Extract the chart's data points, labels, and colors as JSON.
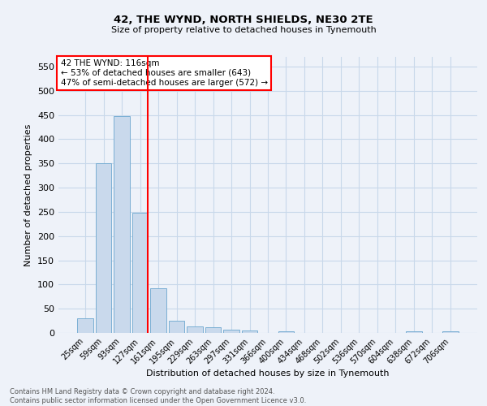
{
  "title1": "42, THE WYND, NORTH SHIELDS, NE30 2TE",
  "title2": "Size of property relative to detached houses in Tynemouth",
  "xlabel": "Distribution of detached houses by size in Tynemouth",
  "ylabel": "Number of detached properties",
  "annotation_line1": "42 THE WYND: 116sqm",
  "annotation_line2": "← 53% of detached houses are smaller (643)",
  "annotation_line3": "47% of semi-detached houses are larger (572) →",
  "footer_line1": "Contains HM Land Registry data © Crown copyright and database right 2024.",
  "footer_line2": "Contains public sector information licensed under the Open Government Licence v3.0.",
  "bar_categories": [
    "25sqm",
    "59sqm",
    "93sqm",
    "127sqm",
    "161sqm",
    "195sqm",
    "229sqm",
    "263sqm",
    "297sqm",
    "331sqm",
    "366sqm",
    "400sqm",
    "434sqm",
    "468sqm",
    "502sqm",
    "536sqm",
    "570sqm",
    "604sqm",
    "638sqm",
    "672sqm",
    "706sqm"
  ],
  "bar_values": [
    30,
    350,
    447,
    248,
    93,
    25,
    14,
    11,
    7,
    5,
    0,
    4,
    0,
    0,
    0,
    0,
    0,
    0,
    4,
    0,
    4
  ],
  "bar_color": "#c9d9ec",
  "bar_edge_color": "#7aafd4",
  "vline_x": 3.425,
  "vline_color": "red",
  "ylim": [
    0,
    570
  ],
  "yticks": [
    0,
    50,
    100,
    150,
    200,
    250,
    300,
    350,
    400,
    450,
    500,
    550
  ],
  "grid_color": "#c8d8ea",
  "background_color": "#eef2f9",
  "annotation_box_color": "white",
  "annotation_box_edge": "red"
}
